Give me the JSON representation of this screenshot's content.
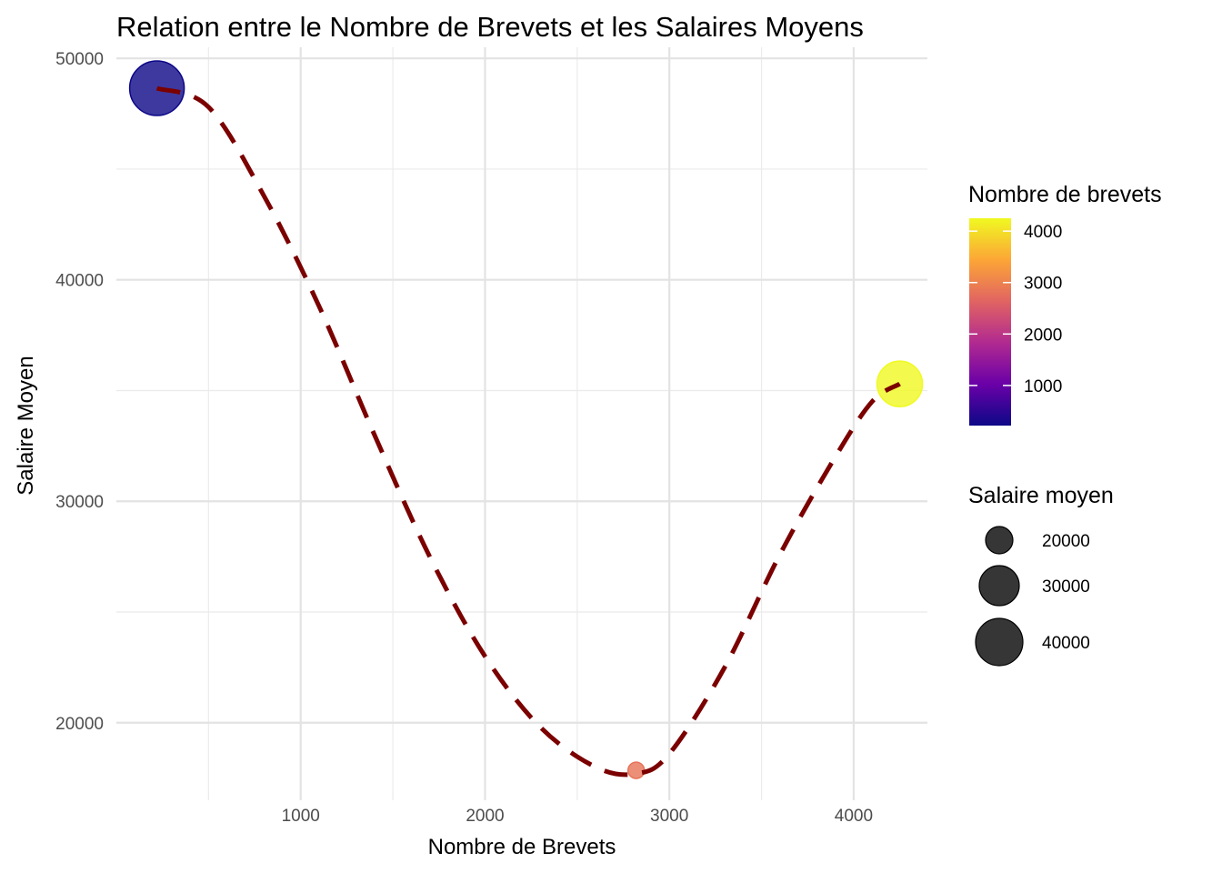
{
  "chart_data": {
    "type": "scatter",
    "title": "Relation entre le Nombre de Brevets et les Salaires Moyens",
    "xlabel": "Nombre de Brevets",
    "ylabel": "Salaire Moyen",
    "xlim": [
      0,
      4400
    ],
    "ylim": [
      16500,
      50500
    ],
    "x_ticks": [
      1000,
      2000,
      3000,
      4000
    ],
    "y_ticks": [
      20000,
      30000,
      40000,
      50000
    ],
    "grid": true,
    "points": [
      {
        "x": 220,
        "y": 48650
      },
      {
        "x": 2820,
        "y": 17850
      },
      {
        "x": 4250,
        "y": 35300
      }
    ],
    "curve": {
      "style": "dashed",
      "color": "#7b0000",
      "points": [
        [
          220,
          48650
        ],
        [
          500,
          47800
        ],
        [
          800,
          43800
        ],
        [
          1100,
          38800
        ],
        [
          1400,
          33000
        ],
        [
          1700,
          27500
        ],
        [
          2000,
          23000
        ],
        [
          2300,
          19800
        ],
        [
          2600,
          18000
        ],
        [
          2820,
          17700
        ],
        [
          3000,
          18600
        ],
        [
          3300,
          22500
        ],
        [
          3600,
          27600
        ],
        [
          3900,
          32000
        ],
        [
          4100,
          34500
        ],
        [
          4250,
          35300
        ]
      ]
    },
    "color_legend": {
      "title": "Nombre de brevets",
      "labels": [
        "1000",
        "2000",
        "3000",
        "4000"
      ],
      "values": [
        1000,
        2000,
        3000,
        4000
      ],
      "range": [
        220,
        4250
      ],
      "palette": [
        "#0d0887",
        "#6a00a8",
        "#b12a90",
        "#e16462",
        "#fca636",
        "#f0f921"
      ]
    },
    "size_legend": {
      "title": "Salaire moyen",
      "labels": [
        "20000",
        "30000",
        "40000"
      ],
      "values": [
        20000,
        30000,
        40000
      ]
    }
  }
}
